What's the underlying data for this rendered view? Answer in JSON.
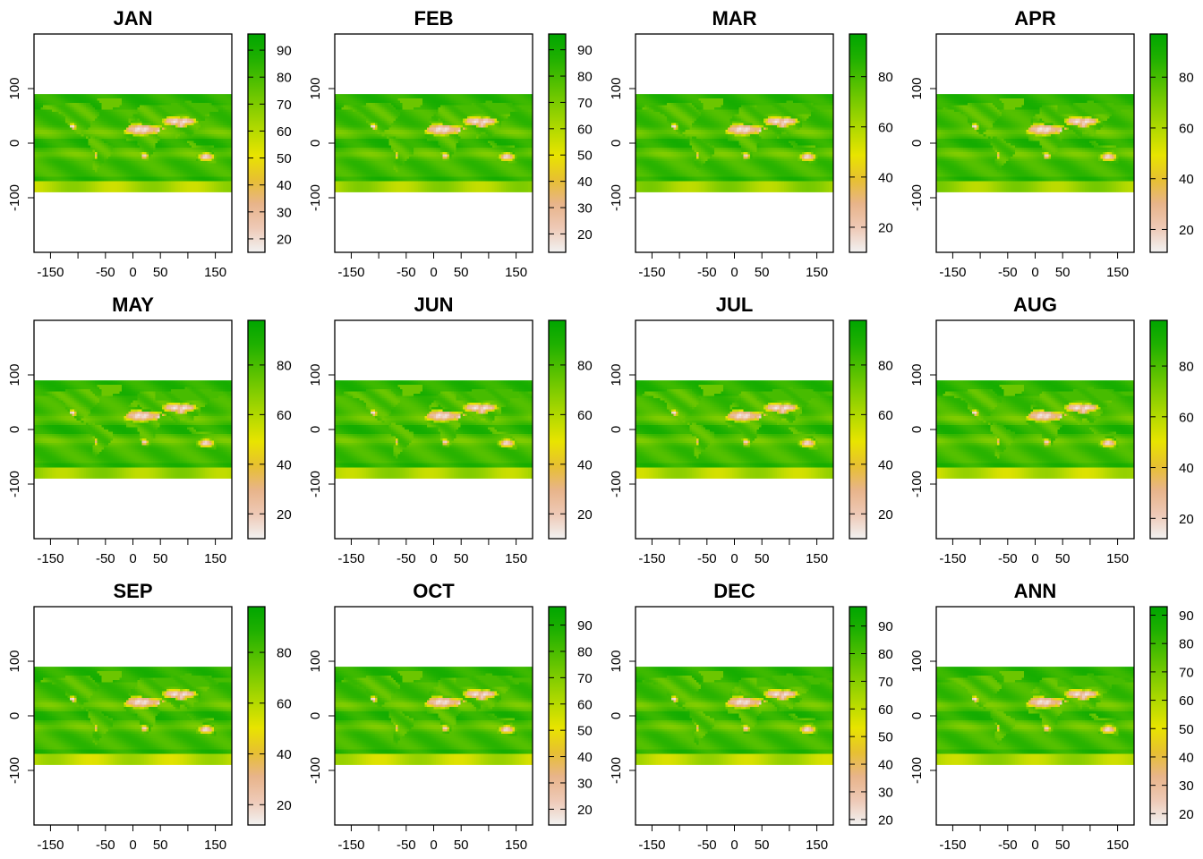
{
  "colors": {
    "ramp": [
      "#f2f2f2",
      "#eec9b6",
      "#e8b48a",
      "#e7c031",
      "#e8e400",
      "#b6da00",
      "#84cd00",
      "#51bf00",
      "#1fb000",
      "#00a600"
    ]
  },
  "chart_data": [
    {
      "type": "heatmap",
      "title": "JAN",
      "x_ticks": [
        -150,
        -50,
        0,
        50,
        150
      ],
      "y_ticks": [
        -100,
        0,
        100
      ],
      "xlim": [
        -180,
        180
      ],
      "ylim": [
        -200,
        200
      ],
      "data_extent": {
        "x": [
          -180,
          180
        ],
        "y": [
          -90,
          90
        ]
      },
      "legend": {
        "ticks": [
          20,
          30,
          40,
          50,
          60,
          70,
          80,
          90
        ],
        "range": [
          15,
          96
        ]
      }
    },
    {
      "type": "heatmap",
      "title": "FEB",
      "x_ticks": [
        -150,
        -50,
        0,
        50,
        150
      ],
      "y_ticks": [
        -100,
        0,
        100
      ],
      "xlim": [
        -180,
        180
      ],
      "ylim": [
        -200,
        200
      ],
      "data_extent": {
        "x": [
          -180,
          180
        ],
        "y": [
          -90,
          90
        ]
      },
      "legend": {
        "ticks": [
          20,
          30,
          40,
          50,
          60,
          70,
          80,
          90
        ],
        "range": [
          13,
          96
        ]
      }
    },
    {
      "type": "heatmap",
      "title": "MAR",
      "x_ticks": [
        -150,
        -50,
        0,
        50,
        150
      ],
      "y_ticks": [
        -100,
        0,
        100
      ],
      "xlim": [
        -180,
        180
      ],
      "ylim": [
        -200,
        200
      ],
      "data_extent": {
        "x": [
          -180,
          180
        ],
        "y": [
          -90,
          90
        ]
      },
      "legend": {
        "ticks": [
          20,
          40,
          60,
          80
        ],
        "range": [
          10,
          97
        ]
      }
    },
    {
      "type": "heatmap",
      "title": "APR",
      "x_ticks": [
        -150,
        -50,
        0,
        50,
        150
      ],
      "y_ticks": [
        -100,
        0,
        100
      ],
      "xlim": [
        -180,
        180
      ],
      "ylim": [
        -200,
        200
      ],
      "data_extent": {
        "x": [
          -180,
          180
        ],
        "y": [
          -90,
          90
        ]
      },
      "legend": {
        "ticks": [
          20,
          40,
          60,
          80
        ],
        "range": [
          11,
          97
        ]
      }
    },
    {
      "type": "heatmap",
      "title": "MAY",
      "x_ticks": [
        -150,
        -50,
        0,
        50,
        150
      ],
      "y_ticks": [
        -100,
        0,
        100
      ],
      "xlim": [
        -180,
        180
      ],
      "ylim": [
        -200,
        200
      ],
      "data_extent": {
        "x": [
          -180,
          180
        ],
        "y": [
          -90,
          90
        ]
      },
      "legend": {
        "ticks": [
          20,
          40,
          60,
          80
        ],
        "range": [
          10,
          98
        ]
      }
    },
    {
      "type": "heatmap",
      "title": "JUN",
      "x_ticks": [
        -150,
        -50,
        0,
        50,
        150
      ],
      "y_ticks": [
        -100,
        0,
        100
      ],
      "xlim": [
        -180,
        180
      ],
      "ylim": [
        -200,
        200
      ],
      "data_extent": {
        "x": [
          -180,
          180
        ],
        "y": [
          -90,
          90
        ]
      },
      "legend": {
        "ticks": [
          20,
          40,
          60,
          80
        ],
        "range": [
          10,
          98
        ]
      }
    },
    {
      "type": "heatmap",
      "title": "JUL",
      "x_ticks": [
        -150,
        -50,
        0,
        50,
        150
      ],
      "y_ticks": [
        -100,
        0,
        100
      ],
      "xlim": [
        -180,
        180
      ],
      "ylim": [
        -200,
        200
      ],
      "data_extent": {
        "x": [
          -180,
          180
        ],
        "y": [
          -90,
          90
        ]
      },
      "legend": {
        "ticks": [
          20,
          40,
          60,
          80
        ],
        "range": [
          10,
          98
        ]
      }
    },
    {
      "type": "heatmap",
      "title": "AUG",
      "x_ticks": [
        -150,
        -50,
        0,
        50,
        150
      ],
      "y_ticks": [
        -100,
        0,
        100
      ],
      "xlim": [
        -180,
        180
      ],
      "ylim": [
        -200,
        200
      ],
      "data_extent": {
        "x": [
          -180,
          180
        ],
        "y": [
          -90,
          90
        ]
      },
      "legend": {
        "ticks": [
          20,
          40,
          60,
          80
        ],
        "range": [
          12,
          98
        ]
      }
    },
    {
      "type": "heatmap",
      "title": "SEP",
      "x_ticks": [
        -150,
        -50,
        0,
        50,
        150
      ],
      "y_ticks": [
        -100,
        0,
        100
      ],
      "xlim": [
        -180,
        180
      ],
      "ylim": [
        -200,
        200
      ],
      "data_extent": {
        "x": [
          -180,
          180
        ],
        "y": [
          -90,
          90
        ]
      },
      "legend": {
        "ticks": [
          20,
          40,
          60,
          80
        ],
        "range": [
          12,
          98
        ]
      }
    },
    {
      "type": "heatmap",
      "title": "OCT",
      "x_ticks": [
        -150,
        -50,
        0,
        50,
        150
      ],
      "y_ticks": [
        -100,
        0,
        100
      ],
      "xlim": [
        -180,
        180
      ],
      "ylim": [
        -200,
        200
      ],
      "data_extent": {
        "x": [
          -180,
          180
        ],
        "y": [
          -90,
          90
        ]
      },
      "legend": {
        "ticks": [
          20,
          30,
          40,
          50,
          60,
          70,
          80,
          90
        ],
        "range": [
          14,
          97
        ]
      }
    },
    {
      "type": "heatmap",
      "title": "DEC",
      "x_ticks": [
        -150,
        -50,
        0,
        50,
        150
      ],
      "y_ticks": [
        -100,
        0,
        100
      ],
      "xlim": [
        -180,
        180
      ],
      "ylim": [
        -200,
        200
      ],
      "data_extent": {
        "x": [
          -180,
          180
        ],
        "y": [
          -90,
          90
        ]
      },
      "legend": {
        "ticks": [
          20,
          30,
          40,
          50,
          60,
          70,
          80,
          90
        ],
        "range": [
          18,
          97
        ]
      }
    },
    {
      "type": "heatmap",
      "title": "ANN",
      "x_ticks": [
        -150,
        -50,
        0,
        50,
        150
      ],
      "y_ticks": [
        -100,
        0,
        100
      ],
      "xlim": [
        -180,
        180
      ],
      "ylim": [
        -200,
        200
      ],
      "data_extent": {
        "x": [
          -180,
          180
        ],
        "y": [
          -90,
          90
        ]
      },
      "legend": {
        "ticks": [
          20,
          30,
          40,
          50,
          60,
          70,
          80,
          90
        ],
        "range": [
          16,
          93
        ]
      }
    }
  ]
}
